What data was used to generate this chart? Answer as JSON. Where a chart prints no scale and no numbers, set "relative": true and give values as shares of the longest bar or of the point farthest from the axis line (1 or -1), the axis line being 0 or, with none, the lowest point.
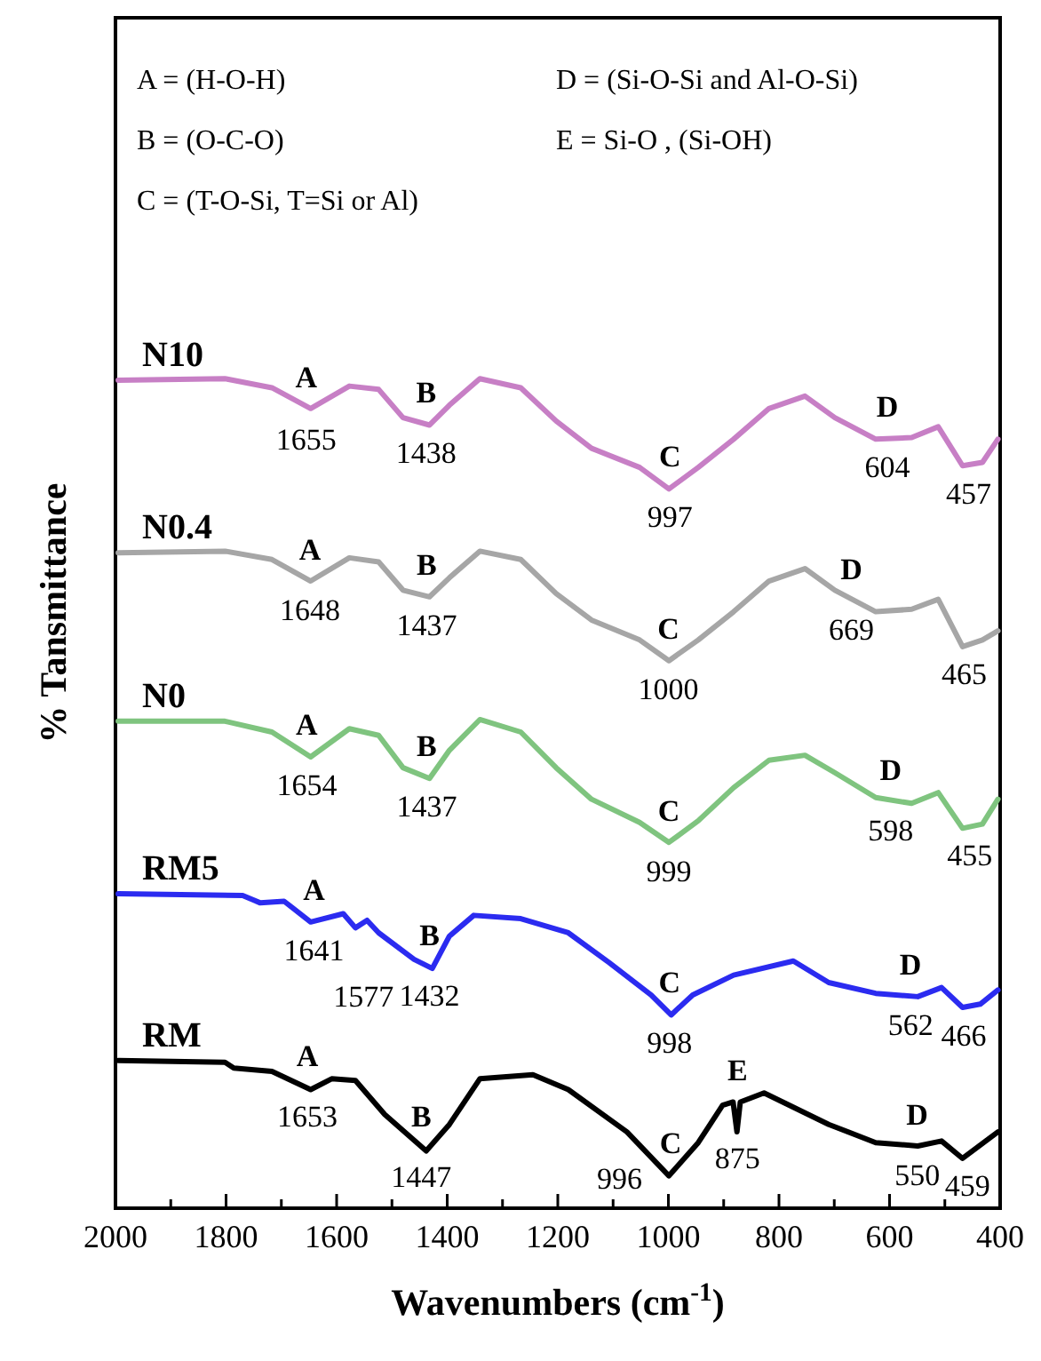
{
  "chart_data": {
    "type": "line",
    "relative": true,
    "xlabel": "Wavenumbers (cm$^{-1}$)",
    "ylabel": "% Tansmittance",
    "xlim": [
      2000,
      400
    ],
    "xticks": [
      2000,
      {
        "value": 1900,
        "label": null
      },
      1800,
      {
        "value": 1700,
        "label": null
      },
      1600,
      {
        "value": 1500,
        "label": null
      },
      1400,
      {
        "value": 1300,
        "label": null
      },
      1200,
      {
        "value": 1100,
        "label": null
      },
      1000,
      {
        "value": 900,
        "label": null
      },
      800,
      {
        "value": 700,
        "label": null
      },
      600,
      {
        "value": 500,
        "label": null
      },
      400
    ],
    "tick_labels": "x",
    "grid": false,
    "line_style": "solid",
    "marker": "none",
    "series": [
      {
        "name": "N10",
        "color": "#c77fc5",
        "x": [
          1995,
          1802,
          1717,
          1647,
          1577,
          1524,
          1480,
          1432,
          1396,
          1341,
          1267,
          1203,
          1139,
          1052,
          999,
          946,
          882,
          818,
          753,
          699,
          625,
          560,
          512,
          468,
          432,
          404
        ],
        "values": [
          0.998,
          1.0,
          0.989,
          0.964,
          0.991,
          0.987,
          0.953,
          0.944,
          0.968,
          1.0,
          0.989,
          0.949,
          0.916,
          0.893,
          0.867,
          0.893,
          0.927,
          0.964,
          0.979,
          0.953,
          0.927,
          0.929,
          0.942,
          0.895,
          0.899,
          0.927
        ]
      },
      {
        "name": "N0.4",
        "color": "#a6a6a6",
        "x": [
          1995,
          1802,
          1717,
          1647,
          1577,
          1524,
          1480,
          1432,
          1396,
          1341,
          1267,
          1203,
          1139,
          1052,
          999,
          946,
          882,
          818,
          753,
          699,
          625,
          560,
          512,
          468,
          432,
          404
        ],
        "values": [
          0.79,
          0.792,
          0.782,
          0.756,
          0.784,
          0.779,
          0.745,
          0.737,
          0.76,
          0.792,
          0.782,
          0.741,
          0.709,
          0.685,
          0.66,
          0.685,
          0.719,
          0.756,
          0.771,
          0.745,
          0.719,
          0.722,
          0.734,
          0.677,
          0.685,
          0.696
        ]
      },
      {
        "name": "N0",
        "color": "#7fc47f",
        "x": [
          1995,
          1802,
          1717,
          1647,
          1577,
          1524,
          1480,
          1432,
          1396,
          1341,
          1267,
          1203,
          1139,
          1052,
          999,
          946,
          882,
          818,
          753,
          699,
          625,
          560,
          512,
          468,
          432,
          404
        ],
        "values": [
          0.587,
          0.587,
          0.574,
          0.544,
          0.578,
          0.57,
          0.531,
          0.518,
          0.552,
          0.589,
          0.574,
          0.531,
          0.493,
          0.465,
          0.441,
          0.467,
          0.507,
          0.54,
          0.546,
          0.525,
          0.495,
          0.488,
          0.501,
          0.458,
          0.463,
          0.493
        ]
      },
      {
        "name": "RM5",
        "color": "#2b2bf0",
        "x": [
          1995,
          1770,
          1738,
          1695,
          1647,
          1588,
          1566,
          1545,
          1524,
          1460,
          1427,
          1396,
          1352,
          1267,
          1181,
          1107,
          1031,
          995,
          956,
          882,
          774,
          710,
          625,
          549,
          506,
          468,
          436,
          404
        ],
        "values": [
          0.379,
          0.377,
          0.368,
          0.37,
          0.345,
          0.355,
          0.338,
          0.347,
          0.332,
          0.3,
          0.289,
          0.328,
          0.353,
          0.349,
          0.332,
          0.296,
          0.257,
          0.233,
          0.257,
          0.281,
          0.298,
          0.272,
          0.259,
          0.255,
          0.266,
          0.242,
          0.246,
          0.263
        ]
      },
      {
        "name": "RM",
        "color": "#000000",
        "x": [
          1995,
          1802,
          1786,
          1717,
          1647,
          1609,
          1566,
          1513,
          1438,
          1396,
          1341,
          1245,
          1181,
          1075,
          999,
          946,
          902,
          883,
          876,
          870,
          827,
          710,
          625,
          549,
          506,
          468,
          404
        ],
        "values": [
          0.178,
          0.176,
          0.169,
          0.165,
          0.143,
          0.156,
          0.154,
          0.113,
          0.069,
          0.101,
          0.156,
          0.161,
          0.143,
          0.092,
          0.039,
          0.079,
          0.124,
          0.128,
          0.092,
          0.128,
          0.139,
          0.101,
          0.079,
          0.075,
          0.081,
          0.06,
          0.092
        ]
      }
    ],
    "annotations": [
      "A = (H-O-H)",
      "B = (O-C-O)",
      "C = (T-O-Si, T=Si or Al)",
      "D = (Si-O-Si and Al-O-Si)",
      "E = Si-O , (Si-OH)",
      {
        "text": "A",
        "x": 1655,
        "y": 0.962
      },
      {
        "text": "1655",
        "x": 1655,
        "y": 0.962
      },
      {
        "text": "B",
        "x": 1438,
        "y": 0.945
      },
      {
        "text": "1438",
        "x": 1438,
        "y": 0.945
      },
      {
        "text": "C",
        "x": 997,
        "y": 0.868
      },
      {
        "text": "997",
        "x": 997,
        "y": 0.868
      },
      {
        "text": "D",
        "x": 604,
        "y": 0.928
      },
      {
        "text": "604",
        "x": 604,
        "y": 0.928
      },
      {
        "text": "457",
        "x": 457,
        "y": 0.896
      },
      {
        "text": "A",
        "x": 1648,
        "y": 0.756
      },
      {
        "text": "1648",
        "x": 1648,
        "y": 0.756
      },
      {
        "text": "B",
        "x": 1437,
        "y": 0.738
      },
      {
        "text": "1437",
        "x": 1437,
        "y": 0.738
      },
      {
        "text": "C",
        "x": 1000,
        "y": 0.661
      },
      {
        "text": "1000",
        "x": 1000,
        "y": 0.661
      },
      {
        "text": "D",
        "x": 669,
        "y": 0.732
      },
      {
        "text": "669",
        "x": 669,
        "y": 0.732
      },
      {
        "text": "465",
        "x": 465,
        "y": 0.679
      },
      {
        "text": "A",
        "x": 1654,
        "y": 0.545
      },
      {
        "text": "1654",
        "x": 1654,
        "y": 0.545
      },
      {
        "text": "B",
        "x": 1437,
        "y": 0.519
      },
      {
        "text": "1437",
        "x": 1437,
        "y": 0.519
      },
      {
        "text": "C",
        "x": 999,
        "y": 0.441
      },
      {
        "text": "999",
        "x": 999,
        "y": 0.441
      },
      {
        "text": "D",
        "x": 598,
        "y": 0.49
      },
      {
        "text": "598",
        "x": 598,
        "y": 0.49
      },
      {
        "text": "455",
        "x": 455,
        "y": 0.46
      },
      {
        "text": "A",
        "x": 1641,
        "y": 0.346
      },
      {
        "text": "1641",
        "x": 1641,
        "y": 0.346
      },
      {
        "text": "1577",
        "x": 1577,
        "y": 0.346
      },
      {
        "text": "B",
        "x": 1432,
        "y": 0.291
      },
      {
        "text": "1432",
        "x": 1432,
        "y": 0.291
      },
      {
        "text": "C",
        "x": 998,
        "y": 0.234
      },
      {
        "text": "998",
        "x": 998,
        "y": 0.234
      },
      {
        "text": "D",
        "x": 562,
        "y": 0.256
      },
      {
        "text": "562",
        "x": 562,
        "y": 0.256
      },
      {
        "text": "466",
        "x": 466,
        "y": 0.243
      },
      {
        "text": "A",
        "x": 1653,
        "y": 0.145
      },
      {
        "text": "1653",
        "x": 1653,
        "y": 0.145
      },
      {
        "text": "B",
        "x": 1447,
        "y": 0.073
      },
      {
        "text": "1447",
        "x": 1447,
        "y": 0.073
      },
      {
        "text": "C",
        "x": 996,
        "y": 0.041
      },
      {
        "text": "996",
        "x": 996,
        "y": 0.041
      },
      {
        "text": "E",
        "x": 875,
        "y": 0.095
      },
      {
        "text": "875",
        "x": 875,
        "y": 0.095
      },
      {
        "text": "D",
        "x": 550,
        "y": 0.075
      },
      {
        "text": "550",
        "x": 550,
        "y": 0.075
      },
      {
        "text": "459",
        "x": 459,
        "y": 0.062
      }
    ]
  }
}
